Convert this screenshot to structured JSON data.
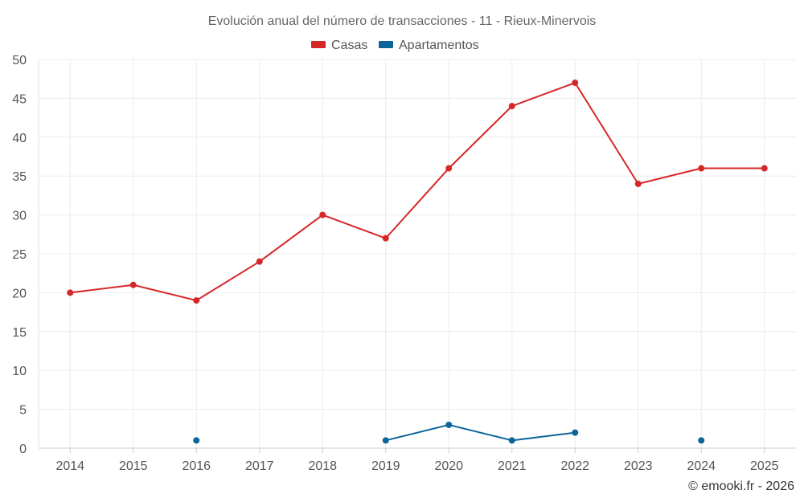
{
  "chart_data": {
    "type": "line",
    "title": "Evolución anual del número de transacciones - 11 - Rieux-Minervois",
    "categories": [
      "2014",
      "2015",
      "2016",
      "2017",
      "2018",
      "2019",
      "2020",
      "2021",
      "2022",
      "2023",
      "2024",
      "2025"
    ],
    "ylim": [
      0,
      50
    ],
    "yticks": [
      0,
      5,
      10,
      15,
      20,
      25,
      30,
      35,
      40,
      45,
      50
    ],
    "grid": true,
    "legend_position": "top-center",
    "series": [
      {
        "name": "Casas",
        "color": "#d62728",
        "values": [
          20,
          21,
          19,
          24,
          30,
          27,
          36,
          44,
          47,
          34,
          36,
          36
        ]
      },
      {
        "name": "Apartamentos",
        "color": "#0b6599",
        "values": [
          null,
          null,
          1,
          null,
          null,
          1,
          3,
          1,
          2,
          null,
          1,
          null
        ]
      }
    ],
    "credit": "© emooki.fr - 2026"
  }
}
